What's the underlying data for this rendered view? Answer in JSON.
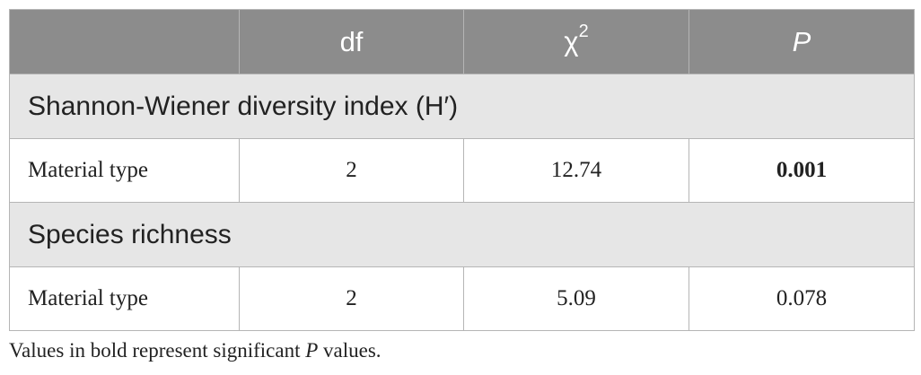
{
  "table": {
    "header": {
      "df": "df",
      "chi2": {
        "symbol": "χ",
        "superscript": "2"
      },
      "p": "P"
    },
    "sections": [
      {
        "title": "Shannon-Wiener diversity index (H′)",
        "row": {
          "label": "Material type",
          "df": "2",
          "chi2": "12.74",
          "p": "0.001",
          "p_bold": true
        }
      },
      {
        "title": "Species richness",
        "row": {
          "label": "Material type",
          "df": "2",
          "chi2": "5.09",
          "p": "0.078",
          "p_bold": false
        }
      }
    ]
  },
  "footnote": {
    "before": "Values in bold represent significant ",
    "italic": "P",
    "after": " values."
  }
}
